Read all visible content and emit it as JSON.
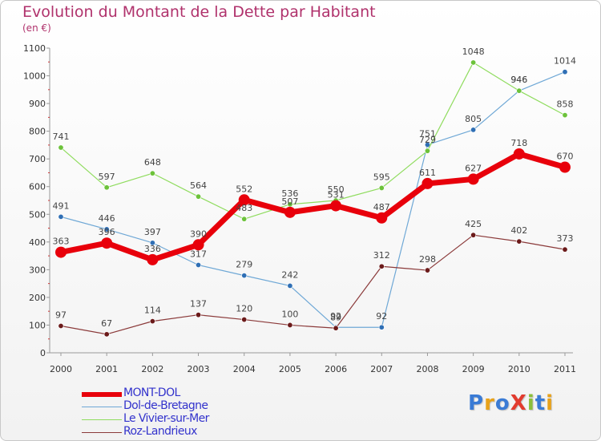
{
  "title": "Evolution du Montant de la Dette par Habitant",
  "subtitle": "(en €)",
  "brand": {
    "text": "ProXiti",
    "colors": [
      "#3a7bd5",
      "#e8a21a",
      "#3a7bd5",
      "#e23b2e",
      "#8bbf3a",
      "#3a7bd5",
      "#e8a21a"
    ]
  },
  "chart_data": {
    "type": "line",
    "title": "Evolution du Montant de la Dette par Habitant",
    "subtitle": "(en €)",
    "xlabel": "",
    "ylabel": "",
    "x": [
      "2000",
      "2001",
      "2002",
      "2003",
      "2004",
      "2005",
      "2006",
      "2007",
      "2008",
      "2009",
      "2010",
      "2011"
    ],
    "ylim": [
      0,
      1100
    ],
    "yticks": [
      "0",
      "100",
      "200",
      "300",
      "400",
      "500",
      "600",
      "700",
      "800",
      "900",
      "1000",
      "1100"
    ],
    "grid": false,
    "legend_position": "bottom-left",
    "series": [
      {
        "name": "MONT-DOL",
        "color": "#e8000b",
        "emphasis": true,
        "values": [
          363,
          396,
          336,
          390,
          552,
          507,
          531,
          487,
          611,
          627,
          718,
          670
        ],
        "labels": [
          "363",
          "396",
          "336",
          "390",
          "552",
          "507",
          "531",
          "487",
          "611",
          "627",
          "718",
          "670"
        ]
      },
      {
        "name": "Dol-de-Bretagne",
        "color": "#6fa8d6",
        "marker": "#2f6fb5",
        "values": [
          491,
          446,
          397,
          317,
          279,
          242,
          92,
          92,
          751,
          805,
          946,
          1014
        ],
        "labels": [
          "491",
          "446",
          "397",
          "317",
          "279",
          "242",
          "92",
          "92",
          "751",
          "805",
          "946",
          "1014"
        ]
      },
      {
        "name": "Le Vivier-sur-Mer",
        "color": "#8fdc5e",
        "marker": "#6cc23a",
        "values": [
          741,
          597,
          648,
          564,
          483,
          536,
          550,
          595,
          729,
          1048,
          946,
          858
        ],
        "labels": [
          "741",
          "597",
          "648",
          "564",
          "483",
          "536",
          "550",
          "595",
          "729",
          "1048",
          "946",
          "858"
        ]
      },
      {
        "name": "Roz-Landrieux",
        "color": "#8b3a3a",
        "marker": "#6b1a1a",
        "values": [
          97,
          67,
          114,
          137,
          120,
          100,
          89,
          312,
          298,
          425,
          402,
          373
        ],
        "labels": [
          "97",
          "67",
          "114",
          "137",
          "120",
          "100",
          "89",
          "312",
          "298",
          "425",
          "402",
          "373"
        ]
      }
    ]
  }
}
